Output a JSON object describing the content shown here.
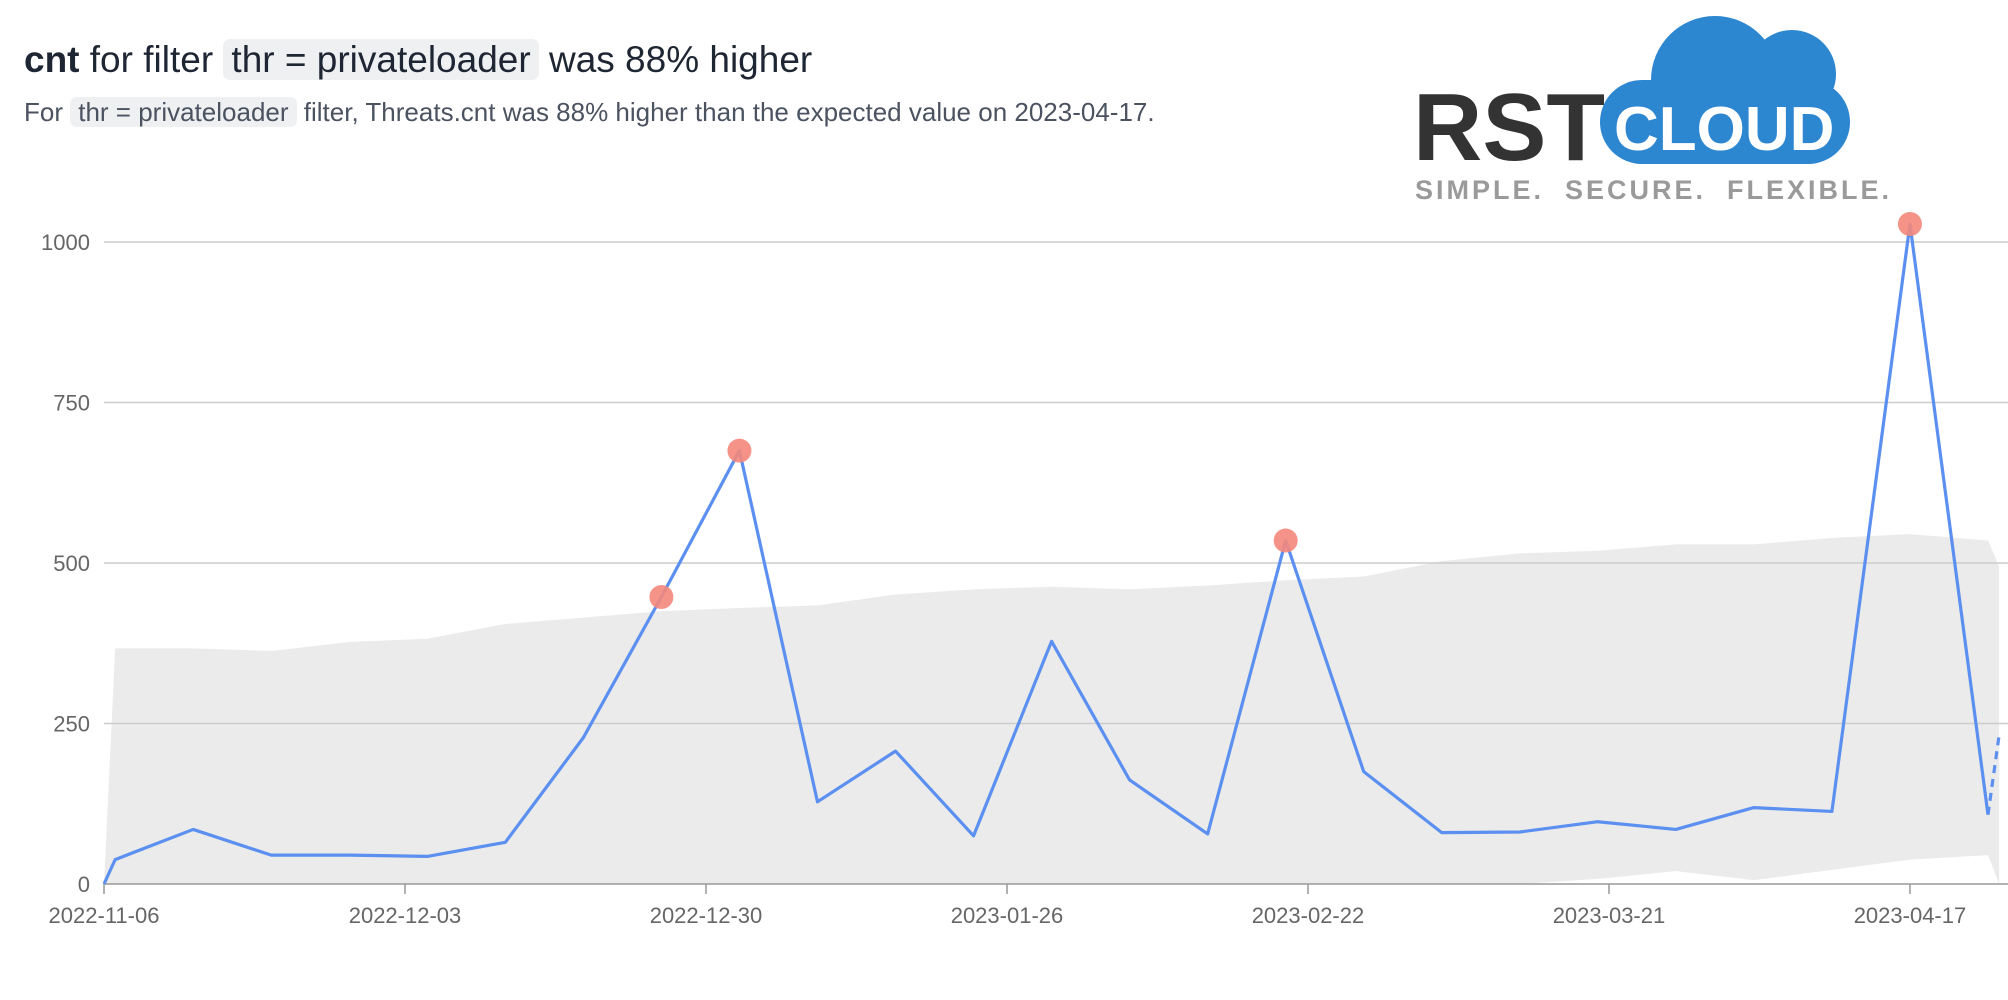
{
  "header": {
    "title": {
      "metric": "cnt",
      "before": "for filter",
      "filter": "thr = privateloader",
      "after": "was 88% higher"
    },
    "subtitle": {
      "before": "For",
      "filter": "thr = privateloader",
      "after": "filter, Threats.cnt was 88% higher than the expected value on 2023-04-17."
    }
  },
  "logo": {
    "left": "RST",
    "right": "CLOUD",
    "tagline": "SIMPLE.  SECURE.  FLEXIBLE."
  },
  "chart_data": {
    "type": "line",
    "x": [
      "2022-11-06",
      "2022-11-07",
      "2022-11-14",
      "2022-11-21",
      "2022-11-28",
      "2022-12-05",
      "2022-12-12",
      "2022-12-19",
      "2022-12-26",
      "2023-01-02",
      "2023-01-09",
      "2023-01-16",
      "2023-01-23",
      "2023-01-30",
      "2023-02-06",
      "2023-02-13",
      "2023-02-20",
      "2023-02-27",
      "2023-03-06",
      "2023-03-13",
      "2023-03-20",
      "2023-03-27",
      "2023-04-03",
      "2023-04-10",
      "2023-04-17",
      "2023-04-24",
      "2023-04-25"
    ],
    "series": [
      {
        "color": "#5b8ff0",
        "values": [
          0,
          38,
          85,
          45,
          45,
          43,
          65,
          228,
          447,
          675,
          128,
          207,
          75,
          378,
          162,
          78,
          535,
          175,
          80,
          81,
          97,
          85,
          119,
          113,
          1028,
          108,
          null
        ]
      },
      {
        "color": "#5b8ff0",
        "dashed": true,
        "values": [
          null,
          null,
          null,
          null,
          null,
          null,
          null,
          null,
          null,
          null,
          null,
          null,
          null,
          null,
          null,
          null,
          null,
          null,
          null,
          null,
          null,
          null,
          null,
          null,
          null,
          108,
          232
        ]
      }
    ],
    "band": {
      "color": "#ebebec",
      "upper": [
        0,
        367,
        367,
        363,
        377,
        382,
        405,
        415,
        425,
        430,
        434,
        451,
        459,
        463,
        459,
        465,
        473,
        479,
        503,
        515,
        519,
        529,
        529,
        539,
        545,
        535,
        495
      ],
      "lower": [
        0,
        0,
        0,
        0,
        0,
        0,
        0,
        0,
        0,
        0,
        0,
        0,
        0,
        0,
        0,
        0,
        0,
        0,
        0,
        0,
        8,
        20,
        6,
        22,
        38,
        45,
        0
      ]
    },
    "anomalies": {
      "color": "#f4877c",
      "values": [
        null,
        null,
        null,
        null,
        null,
        null,
        null,
        null,
        447,
        675,
        null,
        null,
        null,
        null,
        null,
        null,
        535,
        null,
        null,
        null,
        null,
        null,
        null,
        null,
        1028,
        null,
        null
      ]
    },
    "xlim": [
      "2022-11-06",
      "2023-04-24"
    ],
    "xticks": [
      "2022-11-06",
      "2022-12-03",
      "2022-12-30",
      "2023-01-26",
      "2023-02-22",
      "2023-03-21",
      "2023-04-17"
    ],
    "ylim": [
      0,
      1000
    ],
    "yticks": [
      0,
      250,
      500,
      750,
      1000
    ],
    "grid": true
  }
}
